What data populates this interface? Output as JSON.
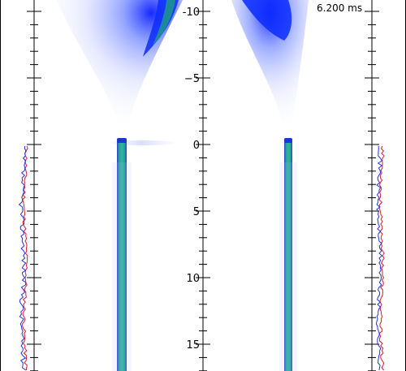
{
  "timestamp": "6.200 ms",
  "axis": {
    "tick_labels": [
      "-10",
      "−5",
      "0",
      "5",
      "10",
      "15"
    ]
  },
  "colors": {
    "plume_blue": "#1a3cff",
    "jet_teal": "#2aa890",
    "jet_cap": "#1a36d6",
    "profile_red": "#d81c2a",
    "profile_blue": "#2230d8",
    "axis": "#000000",
    "background": "#ffffff"
  }
}
